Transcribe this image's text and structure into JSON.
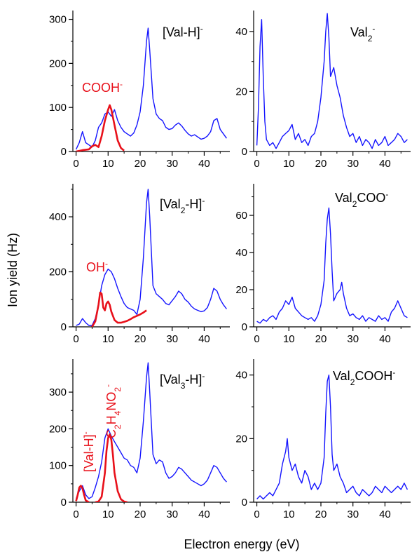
{
  "figure": {
    "ylabel": "Ion yield (Hz)",
    "xlabel": "Electron energy (eV)"
  },
  "chart_data": [
    {
      "type": "line",
      "panel": "a",
      "label": {
        "base": "[Val-H]",
        "sup": "-"
      },
      "xlim": [
        -1,
        48
      ],
      "ylim": [
        0,
        320
      ],
      "xticks": [
        0,
        10,
        20,
        30,
        40
      ],
      "yticks": [
        0,
        100,
        200,
        300
      ],
      "series": [
        {
          "color": "#1414ff",
          "x": [
            0,
            1,
            2,
            3,
            4,
            5,
            6,
            7,
            8,
            9,
            10,
            11,
            12,
            13,
            14,
            15,
            16,
            17,
            18,
            19,
            20,
            21,
            22,
            22.5,
            23,
            24,
            25,
            26,
            27,
            28,
            29,
            30,
            31,
            32,
            33,
            34,
            35,
            36,
            37,
            38,
            39,
            40,
            41,
            42,
            43,
            44,
            45,
            46,
            47
          ],
          "values": [
            5,
            20,
            45,
            20,
            15,
            10,
            25,
            55,
            65,
            85,
            90,
            80,
            95,
            70,
            55,
            45,
            40,
            35,
            42,
            60,
            90,
            150,
            250,
            280,
            230,
            120,
            85,
            75,
            70,
            55,
            50,
            52,
            60,
            65,
            58,
            48,
            40,
            35,
            38,
            33,
            28,
            30,
            35,
            45,
            70,
            75,
            50,
            40,
            30
          ]
        },
        {
          "color": "#e8101a",
          "annotation": "COOH",
          "annotation_sup": "-",
          "x": [
            0,
            2,
            4,
            5,
            6,
            7,
            8,
            9,
            10,
            10.5,
            11,
            12,
            13,
            14,
            15
          ],
          "values": [
            0,
            3,
            5,
            12,
            15,
            10,
            35,
            70,
            95,
            105,
            95,
            60,
            25,
            8,
            2
          ]
        }
      ]
    },
    {
      "type": "line",
      "panel": "b",
      "label": {
        "base": "Val",
        "sub": "2",
        "sup": "-"
      },
      "xlim": [
        -1,
        48
      ],
      "ylim": [
        0,
        47
      ],
      "xticks": [
        0,
        10,
        20,
        30,
        40
      ],
      "yticks": [
        0,
        20,
        40
      ],
      "series": [
        {
          "color": "#1414ff",
          "x": [
            0,
            0.5,
            1,
            1.5,
            2,
            2.5,
            3,
            4,
            5,
            6,
            7,
            8,
            9,
            10,
            11,
            12,
            13,
            14,
            15,
            16,
            17,
            18,
            19,
            20,
            21,
            21.5,
            22,
            22.5,
            23,
            24,
            25,
            26,
            27,
            28,
            29,
            30,
            31,
            32,
            33,
            34,
            35,
            36,
            37,
            38,
            39,
            40,
            41,
            42,
            43,
            44,
            45,
            46,
            47
          ],
          "values": [
            2,
            15,
            35,
            44,
            25,
            10,
            4,
            2,
            3,
            1,
            3,
            5,
            6,
            7,
            9,
            4,
            6,
            3,
            4,
            2,
            5,
            6,
            10,
            18,
            30,
            40,
            46,
            38,
            25,
            28,
            22,
            18,
            12,
            8,
            5,
            6,
            3,
            5,
            2,
            4,
            3,
            1,
            4,
            2,
            3,
            5,
            2,
            3,
            4,
            6,
            5,
            3,
            4
          ]
        }
      ]
    },
    {
      "type": "line",
      "panel": "c",
      "label": {
        "base": "[Val",
        "sub": "2",
        "tail": "-H]",
        "sup": "-"
      },
      "xlim": [
        -1,
        48
      ],
      "ylim": [
        0,
        520
      ],
      "xticks": [
        0,
        10,
        20,
        30,
        40
      ],
      "yticks": [
        0,
        200,
        400
      ],
      "series": [
        {
          "color": "#1414ff",
          "x": [
            0,
            1,
            2,
            3,
            4,
            5,
            6,
            7,
            8,
            9,
            10,
            11,
            12,
            13,
            14,
            15,
            16,
            17,
            18,
            19,
            20,
            21,
            22,
            22.5,
            23,
            24,
            25,
            26,
            27,
            28,
            29,
            30,
            31,
            32,
            33,
            34,
            35,
            36,
            37,
            38,
            39,
            40,
            41,
            42,
            43,
            44,
            45,
            46,
            47
          ],
          "values": [
            5,
            10,
            30,
            15,
            5,
            5,
            30,
            80,
            150,
            190,
            210,
            200,
            175,
            140,
            110,
            85,
            70,
            65,
            60,
            45,
            100,
            250,
            450,
            500,
            400,
            150,
            120,
            110,
            100,
            85,
            80,
            95,
            110,
            130,
            120,
            100,
            90,
            75,
            65,
            60,
            55,
            58,
            70,
            100,
            140,
            130,
            100,
            80,
            65
          ]
        },
        {
          "color": "#e8101a",
          "annotation": "OH",
          "annotation_sup": "-",
          "x": [
            5,
            6,
            7,
            7.5,
            8,
            8.5,
            9,
            9.5,
            10,
            10.5,
            11,
            12,
            13,
            14,
            15,
            16,
            17,
            18,
            19,
            20,
            21,
            22
          ],
          "values": [
            0,
            20,
            80,
            125,
            120,
            70,
            60,
            85,
            92,
            80,
            55,
            25,
            15,
            15,
            18,
            22,
            28,
            35,
            40,
            45,
            52,
            60
          ]
        }
      ]
    },
    {
      "type": "line",
      "panel": "d",
      "label": {
        "base": "Val",
        "sub": "2",
        "tail": "COO",
        "sup": "-"
      },
      "xlim": [
        -1,
        48
      ],
      "ylim": [
        0,
        77
      ],
      "xticks": [
        0,
        10,
        20,
        30,
        40
      ],
      "yticks": [
        0,
        20,
        40,
        60
      ],
      "series": [
        {
          "color": "#1414ff",
          "x": [
            0,
            1,
            2,
            3,
            4,
            5,
            6,
            7,
            8,
            9,
            10,
            11,
            12,
            13,
            14,
            15,
            16,
            17,
            18,
            19,
            20,
            21,
            21.5,
            22,
            22.5,
            23,
            23.5,
            24,
            25,
            26,
            26.5,
            27,
            28,
            29,
            30,
            31,
            32,
            33,
            34,
            35,
            36,
            37,
            38,
            39,
            40,
            41,
            42,
            43,
            44,
            45,
            46,
            47
          ],
          "values": [
            3,
            2,
            4,
            3,
            5,
            6,
            4,
            8,
            10,
            14,
            12,
            16,
            10,
            8,
            6,
            5,
            4,
            5,
            3,
            6,
            12,
            25,
            45,
            58,
            64,
            50,
            30,
            14,
            18,
            20,
            24,
            18,
            10,
            6,
            7,
            5,
            4,
            6,
            3,
            5,
            4,
            3,
            6,
            4,
            5,
            3,
            8,
            10,
            14,
            10,
            6,
            5
          ]
        }
      ]
    },
    {
      "type": "line",
      "panel": "e",
      "label": {
        "base": "[Val",
        "sub": "3",
        "tail": "-H]",
        "sup": "-"
      },
      "xlim": [
        -1,
        48
      ],
      "ylim": [
        0,
        390
      ],
      "xticks": [
        0,
        10,
        20,
        30,
        40
      ],
      "yticks": [
        0,
        100,
        200,
        300
      ],
      "series": [
        {
          "color": "#1414ff",
          "x": [
            0,
            1,
            2,
            3,
            4,
            5,
            6,
            7,
            8,
            9,
            10,
            11,
            12,
            13,
            14,
            15,
            16,
            17,
            18,
            19,
            20,
            21,
            22,
            22.5,
            23,
            24,
            25,
            26,
            27,
            28,
            29,
            30,
            31,
            32,
            33,
            34,
            35,
            36,
            37,
            38,
            39,
            40,
            41,
            42,
            43,
            44,
            45,
            46,
            47
          ],
          "values": [
            10,
            30,
            45,
            20,
            10,
            15,
            40,
            70,
            110,
            175,
            200,
            180,
            165,
            150,
            135,
            120,
            115,
            100,
            95,
            80,
            120,
            220,
            340,
            380,
            300,
            130,
            105,
            115,
            110,
            80,
            65,
            70,
            80,
            95,
            90,
            80,
            70,
            60,
            55,
            50,
            45,
            50,
            60,
            80,
            100,
            95,
            80,
            65,
            55
          ]
        },
        {
          "color": "#e8101a",
          "annotation": "[Val-H]",
          "annotation_sup": "-",
          "x": [
            0,
            0.5,
            1,
            1.5,
            2,
            2.5,
            3,
            4
          ],
          "values": [
            3,
            20,
            40,
            45,
            38,
            20,
            5,
            0
          ]
        },
        {
          "color": "#e8101a",
          "annotation": "C",
          "annotation_sub1": "2",
          "annotation_mid": "H",
          "annotation_sub2": "4",
          "annotation_mid2": "NO",
          "annotation_sub3": "2",
          "annotation_sup": "-",
          "x": [
            6,
            7,
            8,
            9,
            9.5,
            10,
            10.5,
            11,
            11.5,
            12,
            13,
            14,
            15,
            16
          ],
          "values": [
            0,
            2,
            15,
            80,
            140,
            175,
            185,
            170,
            130,
            80,
            30,
            8,
            2,
            0
          ]
        }
      ]
    },
    {
      "type": "line",
      "panel": "f",
      "label": {
        "base": "Val",
        "sub": "2",
        "tail": "COOH",
        "sup": "-"
      },
      "xlim": [
        -1,
        48
      ],
      "ylim": [
        0,
        45
      ],
      "xticks": [
        0,
        10,
        20,
        30,
        40
      ],
      "yticks": [
        0,
        20,
        40
      ],
      "series": [
        {
          "color": "#1414ff",
          "x": [
            0,
            1,
            2,
            3,
            4,
            5,
            6,
            7,
            8,
            9,
            9.5,
            10,
            11,
            12,
            13,
            14,
            15,
            16,
            17,
            18,
            19,
            20,
            21,
            21.5,
            22,
            22.5,
            23,
            23.5,
            24,
            25,
            26,
            27,
            28,
            29,
            30,
            31,
            32,
            33,
            34,
            35,
            36,
            37,
            38,
            39,
            40,
            41,
            42,
            43,
            44,
            45,
            46,
            47
          ],
          "values": [
            1,
            2,
            1,
            2,
            3,
            2,
            4,
            6,
            12,
            16,
            20,
            14,
            10,
            12,
            8,
            6,
            10,
            8,
            4,
            6,
            4,
            6,
            14,
            28,
            38,
            40,
            30,
            15,
            10,
            12,
            8,
            6,
            3,
            4,
            5,
            3,
            2,
            4,
            3,
            2,
            3,
            5,
            4,
            3,
            5,
            4,
            3,
            4,
            5,
            4,
            6,
            4
          ]
        }
      ]
    }
  ]
}
